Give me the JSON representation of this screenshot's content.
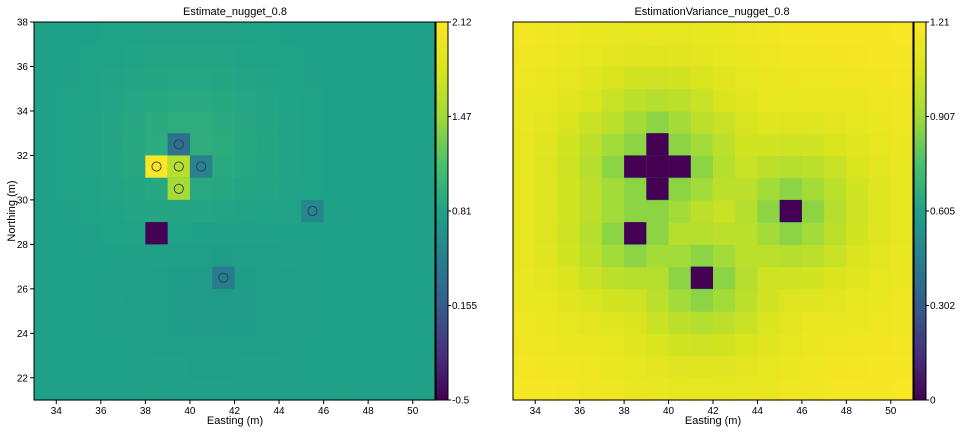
{
  "chart_data": [
    {
      "type": "heatmap",
      "title": "Estimate_nugget_0.8",
      "xlabel": "Easting (m)",
      "ylabel": "Northing (m)",
      "xlim": [
        33,
        51
      ],
      "ylim": [
        21,
        38
      ],
      "xticks": [
        34,
        36,
        38,
        40,
        42,
        44,
        46,
        48,
        50
      ],
      "yticks": [
        22,
        24,
        26,
        28,
        30,
        32,
        34,
        36,
        38
      ],
      "colormap": "viridis",
      "colorbar": {
        "min": -0.5,
        "max": 2.12,
        "ticks": [
          "2.12",
          "1.47",
          "0.81",
          "0.155",
          "-0.5"
        ]
      },
      "background_value": 0.81,
      "cells": [
        {
          "x": 38.5,
          "y": 31.5,
          "value": 2.12
        },
        {
          "x": 39.5,
          "y": 31.5,
          "value": 1.6
        },
        {
          "x": 39.5,
          "y": 30.5,
          "value": 1.5
        },
        {
          "x": 39.5,
          "y": 32.5,
          "value": 0.35
        },
        {
          "x": 40.5,
          "y": 31.5,
          "value": 0.5
        },
        {
          "x": 38.5,
          "y": 28.5,
          "value": -0.5
        },
        {
          "x": 45.5,
          "y": 29.5,
          "value": 0.55
        },
        {
          "x": 41.5,
          "y": 26.5,
          "value": 0.45
        }
      ],
      "points": [
        {
          "x": 38.5,
          "y": 31.5
        },
        {
          "x": 39.5,
          "y": 31.5
        },
        {
          "x": 39.5,
          "y": 30.5
        },
        {
          "x": 39.5,
          "y": 32.5
        },
        {
          "x": 40.5,
          "y": 31.5
        },
        {
          "x": 45.5,
          "y": 29.5
        },
        {
          "x": 41.5,
          "y": 26.5
        }
      ]
    },
    {
      "type": "heatmap",
      "title": "EstimationVariance_nugget_0.8",
      "xlabel": "Easting (m)",
      "ylabel": "",
      "xlim": [
        33,
        51
      ],
      "ylim": [
        21,
        38
      ],
      "xticks": [
        34,
        36,
        38,
        40,
        42,
        44,
        46,
        48,
        50
      ],
      "yticks": [],
      "colormap": "viridis",
      "colorbar": {
        "min": 0,
        "max": 1.21,
        "ticks": [
          "1.21",
          "0.907",
          "0.605",
          "0.302",
          "0"
        ]
      },
      "cells": [
        {
          "x": 38.5,
          "y": 31.5,
          "value": 0
        },
        {
          "x": 39.5,
          "y": 31.5,
          "value": 0
        },
        {
          "x": 39.5,
          "y": 30.5,
          "value": 0
        },
        {
          "x": 39.5,
          "y": 32.5,
          "value": 0
        },
        {
          "x": 40.5,
          "y": 31.5,
          "value": 0
        },
        {
          "x": 38.5,
          "y": 28.5,
          "value": 0
        },
        {
          "x": 45.5,
          "y": 29.5,
          "value": 0
        },
        {
          "x": 41.5,
          "y": 26.5,
          "value": 0
        }
      ]
    }
  ]
}
